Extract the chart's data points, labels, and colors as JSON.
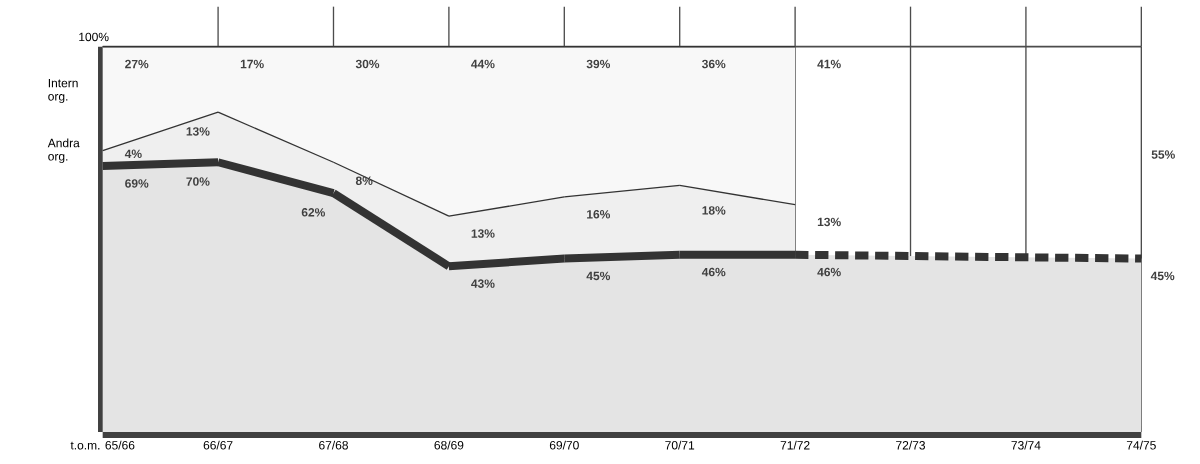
{
  "chart_data": {
    "type": "area",
    "stacked": true,
    "categories": [
      "t.o.m. 65/66",
      "66/67",
      "67/68",
      "68/69",
      "69/70",
      "70/71",
      "71/72",
      "72/73",
      "73/74",
      "74/75"
    ],
    "series": [
      {
        "color": "#e4e4e4",
        "values": [
          69,
          70,
          62,
          43,
          45,
          46,
          46,
          null,
          null,
          45
        ],
        "value_labels": [
          "69%",
          "70%",
          "62%",
          "43%",
          "45%",
          "46%",
          "46%",
          null,
          null,
          "45%"
        ]
      },
      {
        "name": "Andra org.",
        "color": "#efefef",
        "values": [
          4,
          13,
          8,
          13,
          16,
          18,
          13,
          null,
          null,
          null
        ],
        "value_labels": [
          "4%",
          "13%",
          "8%",
          "13%",
          "16%",
          "18%",
          "13%",
          null,
          null,
          null
        ]
      },
      {
        "name": "Intern org.",
        "color": "#f8f8f8",
        "values": [
          27,
          17,
          30,
          44,
          39,
          36,
          41,
          null,
          null,
          null
        ],
        "value_labels": [
          "27%",
          "17%",
          "30%",
          "44%",
          "39%",
          "36%",
          "41%",
          null,
          null,
          null
        ]
      }
    ],
    "ylim": [
      0,
      100
    ],
    "grid": "x",
    "annotations": [
      "100%",
      "55%"
    ]
  }
}
